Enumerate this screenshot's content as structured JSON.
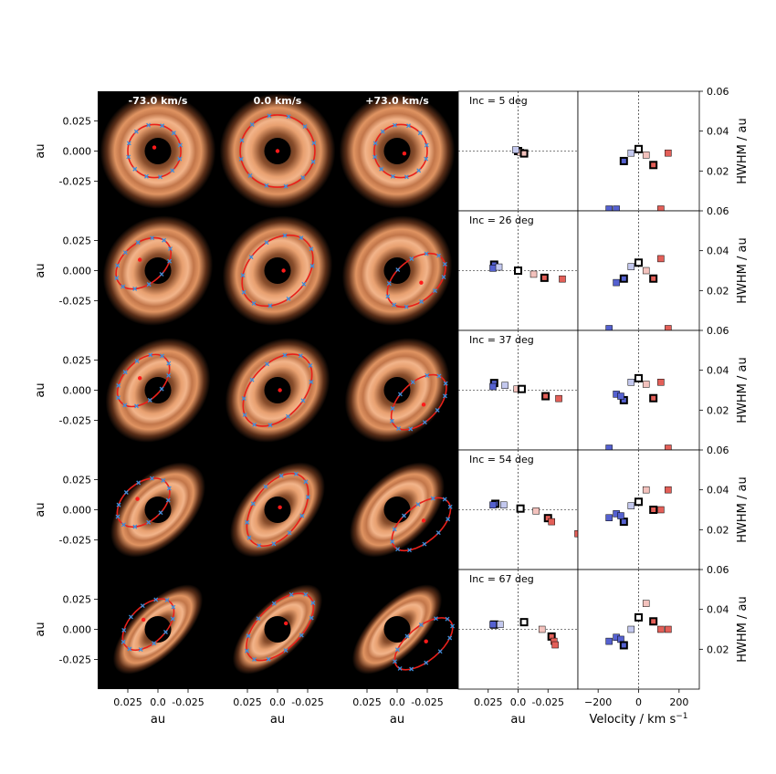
{
  "chart_data": {
    "type": "scatter",
    "velocity_labels": [
      "-73.0 km/s",
      "0.0 km/s",
      "+73.0 km/s"
    ],
    "image_axis_label": "au",
    "image_ticks": [
      "0.025",
      "0.000",
      "-0.025"
    ],
    "image_xticks": [
      "0.025",
      "0.0",
      "-0.025"
    ],
    "image_range": [
      -0.05,
      0.05
    ],
    "offset_xlabel": "au",
    "offset_xticks": [
      "0.025",
      "0.0",
      "-0.025"
    ],
    "velocity_xlabel": "Velocity / km s",
    "velocity_xlabel_sup": "−1",
    "velocity_xticks": [
      -200,
      0,
      200
    ],
    "velocity_range": [
      -300,
      300
    ],
    "ylabel": "HWHM / au",
    "yticks": [
      0.02,
      0.04,
      0.06
    ],
    "ylim": [
      0.0,
      0.06
    ],
    "colors": {
      "blue": "#5561d0",
      "red": "#e35f58",
      "pale_blue": "#c3c8ee",
      "pale_red": "#f3c2bd",
      "ring": "#e9986a",
      "fit_curve": "#e8201a",
      "fit_points": "#3c8fdc"
    },
    "rows": [
      {
        "inclination_label": "Inc = 5 deg",
        "offsets": [
          {
            "x": 0.0,
            "y": 0.0,
            "c": "pale_blue",
            "bold": true
          },
          {
            "x": -0.002,
            "y": -0.001,
            "c": "pale_red",
            "bold": false
          },
          {
            "x": -0.005,
            "y": -0.002,
            "c": "pale_red",
            "bold": true
          },
          {
            "x": 0.002,
            "y": 0.001,
            "c": "pale_blue",
            "bold": false
          }
        ],
        "hwhm": [
          {
            "v": -146,
            "w": 0.0,
            "c": "blue"
          },
          {
            "v": -110,
            "w": 0.0,
            "c": "blue"
          },
          {
            "v": -73,
            "w": 0.025,
            "c": "blue",
            "bold": true
          },
          {
            "v": -37,
            "w": 0.029,
            "c": "pale_blue"
          },
          {
            "v": 0,
            "w": 0.031,
            "c": "white",
            "bold": true
          },
          {
            "v": 37,
            "w": 0.028,
            "c": "pale_red"
          },
          {
            "v": 73,
            "w": 0.023,
            "c": "red",
            "bold": true
          },
          {
            "v": 110,
            "w": 0.0,
            "c": "red"
          },
          {
            "v": 146,
            "w": 0.029,
            "c": "red"
          }
        ]
      },
      {
        "inclination_label": "Inc = 26 deg",
        "offsets": [
          {
            "x": 0.02,
            "y": 0.005,
            "c": "blue",
            "bold": true
          },
          {
            "x": 0.021,
            "y": 0.002,
            "c": "blue"
          },
          {
            "x": 0.016,
            "y": 0.003,
            "c": "pale_blue"
          },
          {
            "x": 0.0,
            "y": 0.0,
            "c": "white",
            "bold": true
          },
          {
            "x": -0.013,
            "y": -0.003,
            "c": "pale_red"
          },
          {
            "x": -0.022,
            "y": -0.006,
            "c": "red",
            "bold": true
          },
          {
            "x": -0.037,
            "y": -0.007,
            "c": "red"
          }
        ],
        "hwhm": [
          {
            "v": -146,
            "w": 0.0,
            "c": "blue"
          },
          {
            "v": -110,
            "w": 0.024,
            "c": "blue"
          },
          {
            "v": -73,
            "w": 0.026,
            "c": "blue",
            "bold": true
          },
          {
            "v": -37,
            "w": 0.032,
            "c": "pale_blue"
          },
          {
            "v": 0,
            "w": 0.034,
            "c": "white",
            "bold": true
          },
          {
            "v": 37,
            "w": 0.03,
            "c": "pale_red"
          },
          {
            "v": 73,
            "w": 0.026,
            "c": "red",
            "bold": true
          },
          {
            "v": 110,
            "w": 0.036,
            "c": "red"
          },
          {
            "v": 146,
            "w": 0.0,
            "c": "red"
          }
        ]
      },
      {
        "inclination_label": "Inc = 37 deg",
        "offsets": [
          {
            "x": 0.02,
            "y": 0.006,
            "c": "blue",
            "bold": true
          },
          {
            "x": 0.021,
            "y": 0.003,
            "c": "blue"
          },
          {
            "x": 0.011,
            "y": 0.004,
            "c": "pale_blue"
          },
          {
            "x": 0.001,
            "y": 0.001,
            "c": "pale_red"
          },
          {
            "x": -0.003,
            "y": 0.001,
            "c": "white",
            "bold": true
          },
          {
            "x": -0.023,
            "y": -0.005,
            "c": "red",
            "bold": true
          },
          {
            "x": -0.034,
            "y": -0.007,
            "c": "red"
          }
        ],
        "hwhm": [
          {
            "v": -146,
            "w": 0.0,
            "c": "blue"
          },
          {
            "v": -110,
            "w": 0.028,
            "c": "blue"
          },
          {
            "v": -73,
            "w": 0.025,
            "c": "blue",
            "bold": true
          },
          {
            "v": -88,
            "w": 0.027,
            "c": "blue"
          },
          {
            "v": -37,
            "w": 0.034,
            "c": "pale_blue"
          },
          {
            "v": 0,
            "w": 0.036,
            "c": "white",
            "bold": true
          },
          {
            "v": 37,
            "w": 0.033,
            "c": "pale_red"
          },
          {
            "v": 73,
            "w": 0.026,
            "c": "red",
            "bold": true
          },
          {
            "v": 110,
            "w": 0.034,
            "c": "red"
          },
          {
            "v": 146,
            "w": 0.0,
            "c": "red"
          }
        ]
      },
      {
        "inclination_label": "Inc = 54 deg",
        "offsets": [
          {
            "x": 0.019,
            "y": 0.005,
            "c": "blue",
            "bold": true
          },
          {
            "x": 0.021,
            "y": 0.004,
            "c": "blue"
          },
          {
            "x": 0.012,
            "y": 0.004,
            "c": "pale_blue"
          },
          {
            "x": -0.002,
            "y": 0.001,
            "c": "white",
            "bold": true
          },
          {
            "x": -0.015,
            "y": -0.001,
            "c": "pale_red"
          },
          {
            "x": -0.025,
            "y": -0.007,
            "c": "red",
            "bold": true
          },
          {
            "x": -0.028,
            "y": -0.01,
            "c": "red"
          },
          {
            "x": -0.05,
            "y": -0.02,
            "c": "red"
          }
        ],
        "hwhm": [
          {
            "v": -146,
            "w": 0.026,
            "c": "blue"
          },
          {
            "v": -110,
            "w": 0.028,
            "c": "blue"
          },
          {
            "v": -73,
            "w": 0.024,
            "c": "blue",
            "bold": true
          },
          {
            "v": -88,
            "w": 0.027,
            "c": "blue"
          },
          {
            "v": -37,
            "w": 0.032,
            "c": "pale_blue"
          },
          {
            "v": 0,
            "w": 0.034,
            "c": "white",
            "bold": true
          },
          {
            "v": 37,
            "w": 0.04,
            "c": "pale_red"
          },
          {
            "v": 73,
            "w": 0.03,
            "c": "red",
            "bold": true
          },
          {
            "v": 110,
            "w": 0.03,
            "c": "red"
          },
          {
            "v": 146,
            "w": 0.04,
            "c": "red"
          }
        ]
      },
      {
        "inclination_label": "Inc = 67 deg",
        "offsets": [
          {
            "x": 0.02,
            "y": 0.004,
            "c": "blue",
            "bold": true
          },
          {
            "x": 0.021,
            "y": 0.004,
            "c": "blue"
          },
          {
            "x": 0.015,
            "y": 0.004,
            "c": "pale_blue"
          },
          {
            "x": -0.005,
            "y": 0.006,
            "c": "white",
            "bold": true
          },
          {
            "x": -0.02,
            "y": 0.0,
            "c": "pale_red"
          },
          {
            "x": -0.028,
            "y": -0.006,
            "c": "red",
            "bold": true
          },
          {
            "x": -0.03,
            "y": -0.01,
            "c": "red"
          },
          {
            "x": -0.031,
            "y": -0.013,
            "c": "red"
          }
        ],
        "hwhm": [
          {
            "v": -146,
            "w": 0.024,
            "c": "blue"
          },
          {
            "v": -110,
            "w": 0.026,
            "c": "blue"
          },
          {
            "v": -88,
            "w": 0.025,
            "c": "blue"
          },
          {
            "v": -73,
            "w": 0.022,
            "c": "blue",
            "bold": true
          },
          {
            "v": -37,
            "w": 0.03,
            "c": "pale_blue"
          },
          {
            "v": 0,
            "w": 0.036,
            "c": "white",
            "bold": true
          },
          {
            "v": 37,
            "w": 0.043,
            "c": "pale_red"
          },
          {
            "v": 73,
            "w": 0.034,
            "c": "red",
            "bold": true
          },
          {
            "v": 110,
            "w": 0.03,
            "c": "red"
          },
          {
            "v": 146,
            "w": 0.03,
            "c": "red"
          }
        ]
      }
    ],
    "image_panels": [
      [
        {
          "incl": 5,
          "pa": 0,
          "dot": [
            0.003,
            0.003
          ],
          "ell": {
            "cx": 0.003,
            "cy": 0.0,
            "a": 0.022,
            "b": 0.022,
            "rot": 0
          }
        },
        {
          "incl": 5,
          "pa": 0,
          "dot": [
            0.0,
            0.0
          ],
          "ell": {
            "cx": 0.0,
            "cy": 0.0,
            "a": 0.031,
            "b": 0.03,
            "rot": 0
          }
        },
        {
          "incl": 5,
          "pa": 0,
          "dot": [
            -0.006,
            -0.002
          ],
          "ell": {
            "cx": -0.003,
            "cy": 0.0,
            "a": 0.022,
            "b": 0.022,
            "rot": 0
          }
        }
      ],
      [
        {
          "incl": 26,
          "pa": 45,
          "dot": [
            0.015,
            0.009
          ],
          "ell": {
            "cx": 0.012,
            "cy": 0.006,
            "a": 0.026,
            "b": 0.017,
            "rot": -40
          }
        },
        {
          "incl": 26,
          "pa": 45,
          "dot": [
            -0.005,
            0.0
          ],
          "ell": {
            "cx": 0.0,
            "cy": 0.0,
            "a": 0.034,
            "b": 0.024,
            "rot": -45
          }
        },
        {
          "incl": 26,
          "pa": 45,
          "dot": [
            -0.02,
            -0.01
          ],
          "ell": {
            "cx": -0.016,
            "cy": -0.008,
            "a": 0.028,
            "b": 0.017,
            "rot": -40
          }
        }
      ],
      [
        {
          "incl": 37,
          "pa": 45,
          "dot": [
            0.015,
            0.01
          ],
          "ell": {
            "cx": 0.012,
            "cy": 0.008,
            "a": 0.026,
            "b": 0.016,
            "rot": -45
          }
        },
        {
          "incl": 37,
          "pa": 45,
          "dot": [
            -0.002,
            0.0
          ],
          "ell": {
            "cx": 0.0,
            "cy": 0.0,
            "a": 0.035,
            "b": 0.022,
            "rot": -48
          }
        },
        {
          "incl": 37,
          "pa": 45,
          "dot": [
            -0.022,
            -0.012
          ],
          "ell": {
            "cx": -0.018,
            "cy": -0.01,
            "a": 0.028,
            "b": 0.016,
            "rot": -45
          }
        }
      ],
      [
        {
          "incl": 54,
          "pa": 45,
          "dot": [
            0.017,
            0.009
          ],
          "ell": {
            "cx": 0.012,
            "cy": 0.006,
            "a": 0.025,
            "b": 0.016,
            "rot": -40
          }
        },
        {
          "incl": 54,
          "pa": 45,
          "dot": [
            -0.002,
            0.002
          ],
          "ell": {
            "cx": 0.0,
            "cy": 0.0,
            "a": 0.034,
            "b": 0.02,
            "rot": -55
          }
        },
        {
          "incl": 54,
          "pa": 45,
          "dot": [
            -0.022,
            -0.009
          ],
          "ell": {
            "cx": -0.02,
            "cy": -0.012,
            "a": 0.029,
            "b": 0.015,
            "rot": -40
          }
        }
      ],
      [
        {
          "incl": 67,
          "pa": 45,
          "dot": [
            0.012,
            0.008
          ],
          "ell": {
            "cx": 0.008,
            "cy": 0.004,
            "a": 0.026,
            "b": 0.015,
            "rot": -45
          }
        },
        {
          "incl": 67,
          "pa": 45,
          "dot": [
            -0.007,
            0.005
          ],
          "ell": {
            "cx": -0.002,
            "cy": 0.002,
            "a": 0.035,
            "b": 0.018,
            "rot": -45
          }
        },
        {
          "incl": 67,
          "pa": 45,
          "dot": [
            -0.024,
            -0.01
          ],
          "ell": {
            "cx": -0.022,
            "cy": -0.012,
            "a": 0.029,
            "b": 0.014,
            "rot": -40
          }
        }
      ]
    ]
  }
}
